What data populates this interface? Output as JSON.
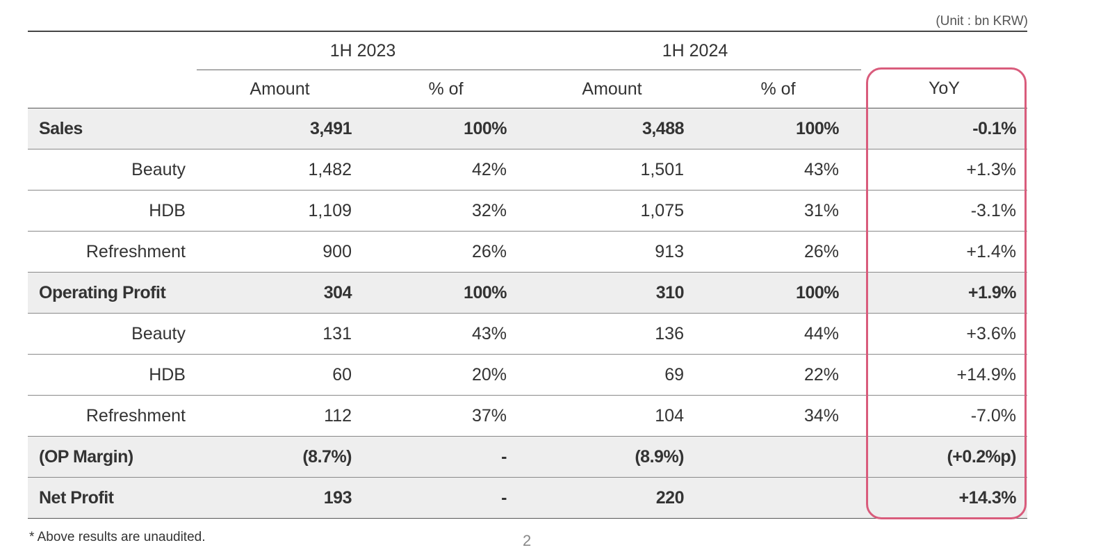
{
  "unit_note": "(Unit : bn KRW)",
  "header": {
    "group1": "1H 2023",
    "group2": "1H 2024",
    "col_amount_1": "Amount",
    "col_pct_1": "% of",
    "col_amount_2": "Amount",
    "col_pct_2": "% of",
    "col_yoy": "YoY"
  },
  "rows": [
    {
      "label": "Sales",
      "a1": "3,491",
      "p1": "100%",
      "a2": "3,488",
      "p2": "100%",
      "yoy": "-0.1%"
    },
    {
      "label": "Beauty",
      "a1": "1,482",
      "p1": "42%",
      "a2": "1,501",
      "p2": "43%",
      "yoy": "+1.3%"
    },
    {
      "label": "HDB",
      "a1": "1,109",
      "p1": "32%",
      "a2": "1,075",
      "p2": "31%",
      "yoy": "-3.1%"
    },
    {
      "label": "Refreshment",
      "a1": "900",
      "p1": "26%",
      "a2": "913",
      "p2": "26%",
      "yoy": "+1.4%"
    },
    {
      "label": "Operating Profit",
      "a1": "304",
      "p1": "100%",
      "a2": "310",
      "p2": "100%",
      "yoy": "+1.9%"
    },
    {
      "label": "Beauty",
      "a1": "131",
      "p1": "43%",
      "a2": "136",
      "p2": "44%",
      "yoy": "+3.6%"
    },
    {
      "label": "HDB",
      "a1": "60",
      "p1": "20%",
      "a2": "69",
      "p2": "22%",
      "yoy": "+14.9%"
    },
    {
      "label": "Refreshment",
      "a1": "112",
      "p1": "37%",
      "a2": "104",
      "p2": "34%",
      "yoy": "-7.0%"
    },
    {
      "label": "(OP Margin)",
      "a1": "(8.7%)",
      "p1": "-",
      "a2": "(8.9%)",
      "p2": "",
      "yoy": "(+0.2%p)"
    },
    {
      "label": "Net Profit",
      "a1": "193",
      "p1": "-",
      "a2": "220",
      "p2": "",
      "yoy": "+14.3%"
    }
  ],
  "footnote": "* Above results are unaudited.",
  "page_number": "2",
  "colors": {
    "highlight_border": "#d95c7c",
    "bold_row_background": "#eeeeee"
  }
}
